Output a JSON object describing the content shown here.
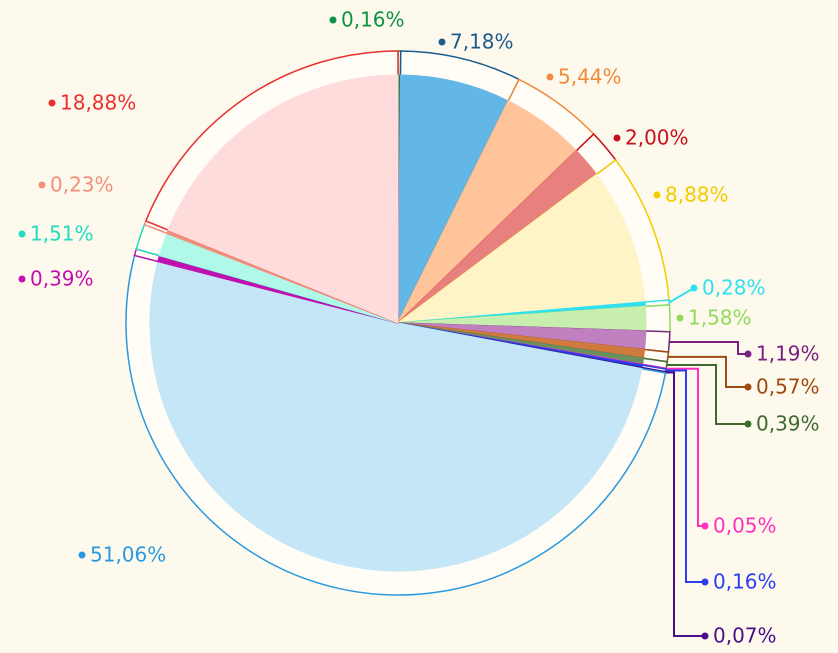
{
  "chart_data": {
    "type": "pie",
    "values": [
      0.16,
      7.18,
      5.44,
      2.0,
      8.88,
      0.28,
      1.58,
      1.19,
      0.57,
      0.39,
      0.05,
      0.16,
      0.07,
      51.06,
      0.39,
      1.51,
      0.23,
      18.88
    ],
    "value_labels": [
      "0,16%",
      "7,18%",
      "5,44%",
      "2,00%",
      "8,88%",
      "0,28%",
      "1,58%",
      "1,19%",
      "0,57%",
      "0,39%",
      "0,05%",
      "0,16%",
      "0,07%",
      "51,06%",
      "0,39%",
      "1,51%",
      "0,23%",
      "18,88%"
    ],
    "colors": [
      "#0b9444",
      "#1a5c8c",
      "#f08a3c",
      "#c8101a",
      "#f2cc00",
      "#2fe0f0",
      "#8fdc5c",
      "#7a2080",
      "#a04a10",
      "#3e6a30",
      "#ff30c0",
      "#2a3ef0",
      "#4a108a",
      "#2a9ae0",
      "#c010b0",
      "#20dcc0",
      "#f0907a",
      "#e83030"
    ],
    "fill_colors": [
      "#0b9444",
      "#63b7e6",
      "#ffc49a",
      "#e88080",
      "#fff3c8",
      "#2fe0f0",
      "#c8eeb0",
      "#c080c0",
      "#d07a40",
      "#6a9060",
      "#ff30c0",
      "#2a3ef0",
      "#4a108a",
      "#c4e6f6",
      "#c010b0",
      "#b0f8e8",
      "#f0907a",
      "#ffdcdc"
    ]
  }
}
